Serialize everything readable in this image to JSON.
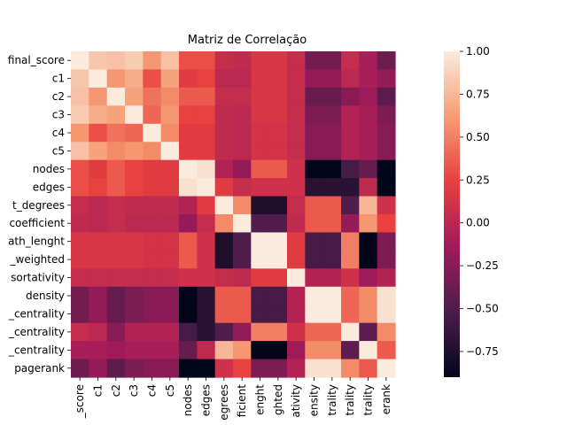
{
  "chart_data": {
    "type": "heatmap",
    "title": "Matriz de Correlação",
    "row_labels": [
      "final_score",
      "c1",
      "c2",
      "c3",
      "c4",
      "c5",
      "nodes",
      "edges",
      "t_degrees",
      "coefficient",
      "ath_lenght",
      "_weighted",
      "sortativity",
      "density",
      "_centrality",
      "_centrality",
      "_centrality",
      "pagerank"
    ],
    "col_labels": [
      "_score",
      "c1",
      "c2",
      "c3",
      "c4",
      "c5",
      "nodes",
      "edges",
      "egrees",
      "ficient",
      "enght",
      "ghted",
      "ativity",
      "ensity",
      "trality",
      "trality",
      "trality",
      "erank"
    ],
    "values": [
      [
        1.0,
        0.82,
        0.8,
        0.85,
        0.6,
        0.8,
        0.3,
        0.3,
        0.05,
        0.02,
        0.15,
        0.15,
        0.05,
        -0.35,
        -0.35,
        0.05,
        -0.1,
        -0.38
      ],
      [
        0.82,
        1.0,
        0.6,
        0.7,
        0.3,
        0.65,
        0.2,
        0.25,
        0.0,
        0.0,
        0.15,
        0.15,
        0.05,
        -0.2,
        -0.2,
        0.0,
        -0.1,
        -0.2
      ],
      [
        0.8,
        0.6,
        1.0,
        0.65,
        0.45,
        0.55,
        0.35,
        0.35,
        0.05,
        0.05,
        0.15,
        0.15,
        0.05,
        -0.4,
        -0.4,
        -0.25,
        -0.15,
        -0.45
      ],
      [
        0.85,
        0.7,
        0.65,
        1.0,
        0.4,
        0.6,
        0.25,
        0.25,
        0.02,
        0.0,
        0.15,
        0.15,
        0.05,
        -0.3,
        -0.3,
        -0.05,
        -0.1,
        -0.3
      ],
      [
        0.6,
        0.3,
        0.45,
        0.4,
        1.0,
        0.55,
        0.2,
        0.2,
        0.02,
        0.0,
        0.12,
        0.12,
        0.05,
        -0.25,
        -0.25,
        -0.05,
        -0.1,
        -0.25
      ],
      [
        0.8,
        0.65,
        0.55,
        0.6,
        0.55,
        1.0,
        0.2,
        0.2,
        0.02,
        0.0,
        0.12,
        0.12,
        0.05,
        -0.25,
        -0.25,
        -0.05,
        -0.1,
        -0.25
      ],
      [
        0.3,
        0.2,
        0.35,
        0.25,
        0.2,
        0.2,
        1.0,
        0.95,
        -0.05,
        -0.2,
        0.35,
        0.35,
        0.1,
        -0.9,
        -0.9,
        -0.55,
        -0.4,
        -0.9
      ],
      [
        0.3,
        0.25,
        0.35,
        0.25,
        0.2,
        0.2,
        0.95,
        1.0,
        0.2,
        0.05,
        0.1,
        0.1,
        0.1,
        -0.7,
        -0.7,
        -0.7,
        0.02,
        -0.9
      ],
      [
        0.05,
        0.0,
        0.05,
        0.02,
        0.02,
        0.02,
        -0.05,
        0.2,
        1.0,
        0.55,
        -0.75,
        -0.75,
        0.05,
        0.35,
        0.35,
        -0.5,
        0.75,
        0.1
      ],
      [
        0.02,
        0.0,
        0.05,
        0.0,
        0.0,
        0.0,
        -0.2,
        0.05,
        0.55,
        1.0,
        -0.5,
        -0.5,
        0.02,
        0.35,
        0.35,
        -0.2,
        0.6,
        0.25
      ],
      [
        0.15,
        0.15,
        0.15,
        0.15,
        0.12,
        0.12,
        0.35,
        0.1,
        -0.75,
        -0.5,
        1.0,
        1.0,
        0.2,
        -0.55,
        -0.55,
        0.5,
        -0.9,
        -0.3
      ],
      [
        0.15,
        0.15,
        0.15,
        0.15,
        0.12,
        0.12,
        0.35,
        0.1,
        -0.75,
        -0.5,
        1.0,
        1.0,
        0.2,
        -0.55,
        -0.55,
        0.5,
        -0.9,
        -0.3
      ],
      [
        0.05,
        0.05,
        0.05,
        0.05,
        0.05,
        0.05,
        0.1,
        0.1,
        0.05,
        0.02,
        0.2,
        0.2,
        1.0,
        -0.05,
        -0.05,
        0.1,
        -0.15,
        -0.05
      ],
      [
        -0.35,
        -0.2,
        -0.4,
        -0.3,
        -0.25,
        -0.25,
        -0.9,
        -0.7,
        0.35,
        0.35,
        -0.55,
        -0.55,
        -0.05,
        1.0,
        1.0,
        0.4,
        0.55,
        0.95
      ],
      [
        -0.35,
        -0.2,
        -0.4,
        -0.3,
        -0.25,
        -0.25,
        -0.9,
        -0.7,
        0.35,
        0.35,
        -0.55,
        -0.55,
        -0.05,
        1.0,
        1.0,
        0.4,
        0.55,
        0.95
      ],
      [
        0.05,
        0.0,
        -0.25,
        -0.05,
        -0.05,
        -0.05,
        -0.55,
        -0.7,
        -0.5,
        -0.2,
        0.5,
        0.5,
        0.1,
        0.4,
        0.4,
        1.0,
        -0.45,
        0.55
      ],
      [
        -0.1,
        -0.1,
        -0.15,
        -0.1,
        -0.1,
        -0.1,
        -0.4,
        0.02,
        0.75,
        0.6,
        -0.9,
        -0.9,
        -0.15,
        0.55,
        0.55,
        -0.45,
        1.0,
        0.35
      ],
      [
        -0.38,
        -0.2,
        -0.45,
        -0.3,
        -0.25,
        -0.25,
        -0.9,
        -0.9,
        0.1,
        0.25,
        -0.3,
        -0.3,
        -0.05,
        0.95,
        0.95,
        0.55,
        0.35,
        1.0
      ]
    ],
    "vmin": -0.9,
    "vmax": 1.0,
    "colorbar_ticks": [
      "1.00",
      "0.75",
      "0.50",
      "0.25",
      "0.00",
      "−0.25",
      "−0.50",
      "−0.75"
    ],
    "colorbar_tick_values": [
      1.0,
      0.75,
      0.5,
      0.25,
      0.0,
      -0.25,
      -0.5,
      -0.75
    ],
    "colormap": [
      "#03051a",
      "#4c1d4b",
      "#a11a5b",
      "#e83f3f",
      "#f69c73",
      "#faebdd"
    ]
  }
}
